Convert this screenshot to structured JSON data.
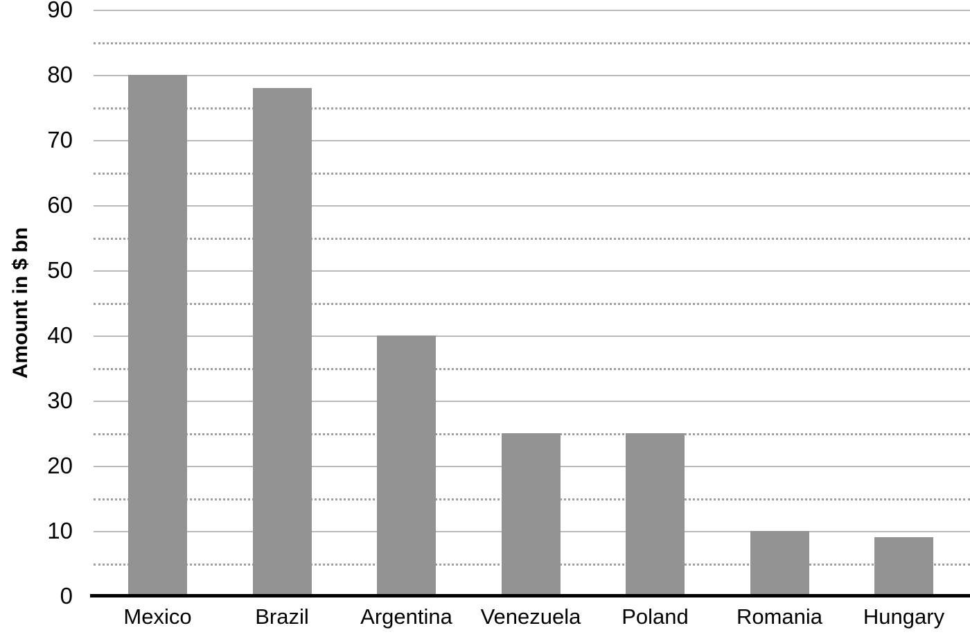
{
  "chart_data": {
    "type": "bar",
    "title": "",
    "categories": [
      "Mexico",
      "Brazil",
      "Argentina",
      "Venezuela",
      "Poland",
      "Romania",
      "Hungary"
    ],
    "values": [
      80,
      78,
      40,
      25,
      25,
      10,
      9
    ],
    "xlabel": "",
    "ylabel": "Amount in $ bn",
    "ylim": [
      0,
      90
    ],
    "y_major_ticks": [
      0,
      10,
      20,
      30,
      40,
      50,
      60,
      70,
      80,
      90
    ],
    "y_minor_ticks": [
      5,
      15,
      25,
      35,
      45,
      55,
      65,
      75,
      85
    ],
    "grid": "major solid, minor dotted, horizontal only",
    "legend": "none",
    "colors": {
      "bar_fill": "#939393",
      "major_gridline": "#b9b9b9",
      "minor_gridline": "#9e9e9e",
      "axis_line": "#000000",
      "text": "#000000",
      "background": "#ffffff"
    }
  }
}
